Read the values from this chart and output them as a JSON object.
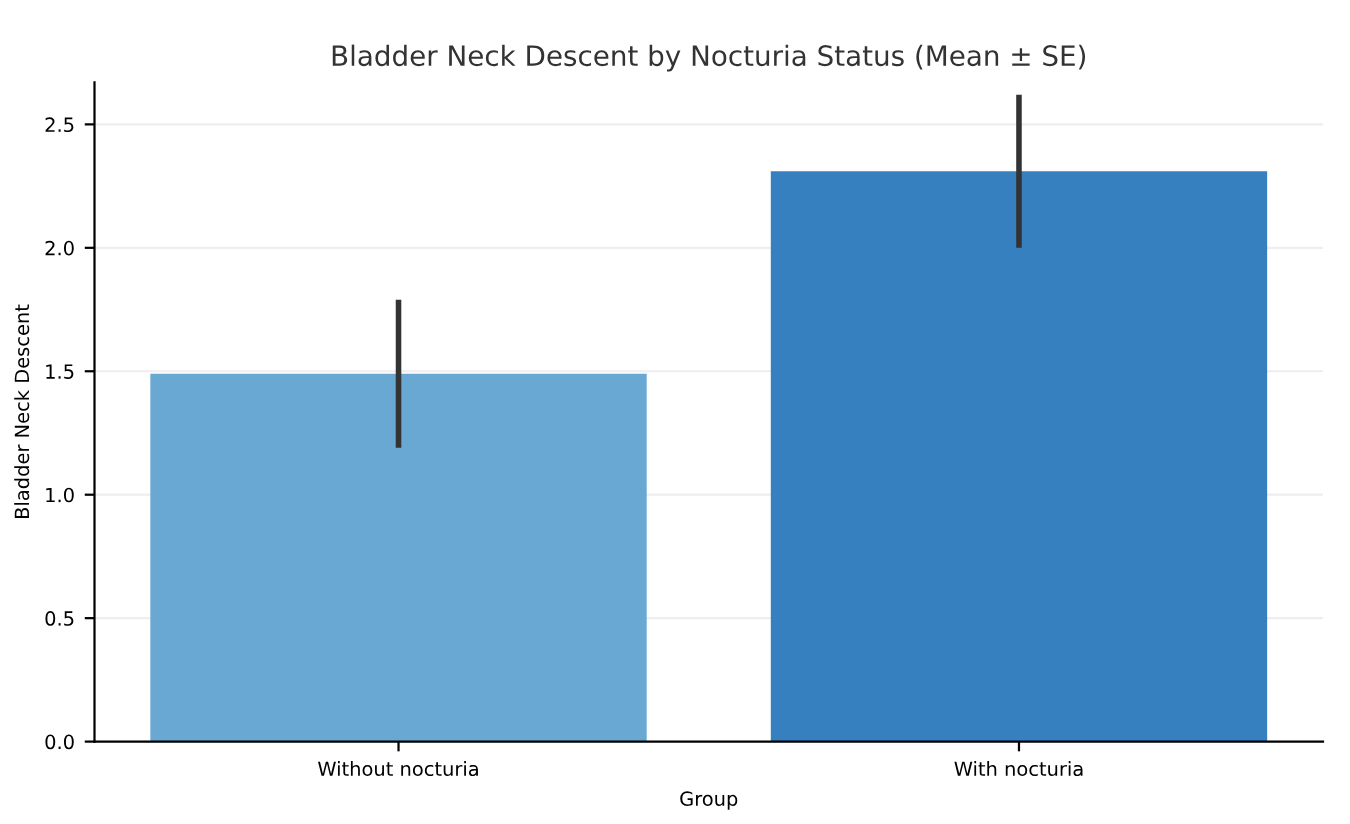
{
  "chart_data": {
    "type": "bar",
    "title": "Bladder Neck Descent by Nocturia Status (Mean ± SE)",
    "xlabel": "Group",
    "ylabel": "Bladder Neck Descent",
    "categories": [
      "Without nocturia",
      "With nocturia"
    ],
    "values": [
      1.49,
      2.31
    ],
    "errors": [
      0.3,
      0.31
    ],
    "colors": [
      "#68a8d2",
      "#3680c0"
    ],
    "ylim": [
      0,
      2.67
    ],
    "yticks": [
      {
        "value": 0,
        "label": "0.0"
      },
      0.5,
      {
        "value": 1,
        "label": "1.0"
      },
      1.5,
      {
        "value": 2,
        "label": "2.0"
      },
      2.5
    ],
    "grid": "y"
  }
}
